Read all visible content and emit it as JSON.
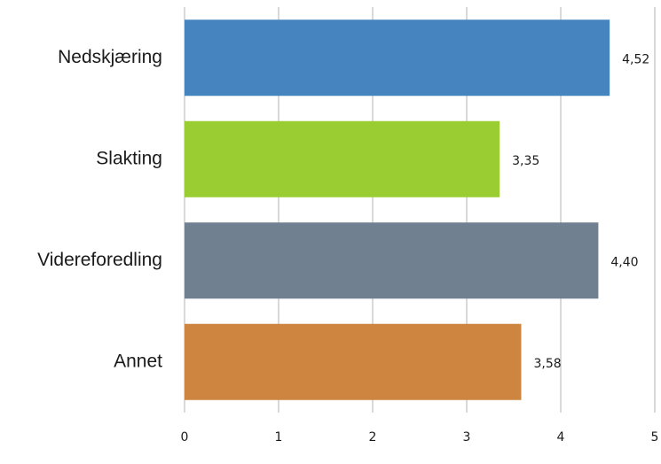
{
  "chart_data": {
    "type": "bar",
    "orientation": "horizontal",
    "title": "",
    "xlabel": "",
    "ylabel": "",
    "xlim": [
      0,
      5
    ],
    "ticks": [
      "0",
      "1",
      "2",
      "3",
      "4",
      "5"
    ],
    "grid": true,
    "legend": "none",
    "categories": [
      "Nedskjæring",
      "Slakting",
      "Videreforedling",
      "Annet"
    ],
    "values": [
      4.52,
      3.35,
      4.4,
      3.58
    ],
    "value_labels": [
      "4,52",
      "3,35",
      "4,40",
      "3,58"
    ],
    "colors": [
      "#4584bf",
      "#9acd32",
      "#708090",
      "#cd853f"
    ]
  }
}
